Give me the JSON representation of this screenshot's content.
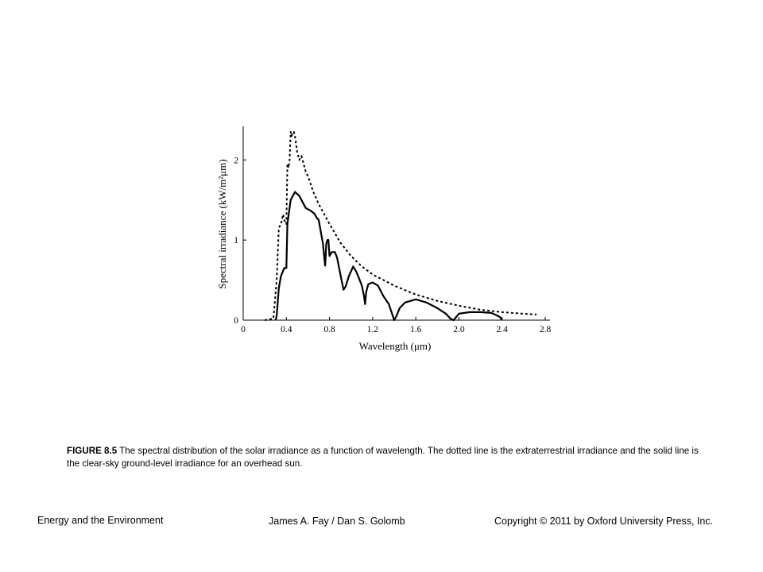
{
  "chart_data": {
    "type": "line",
    "xlabel": "Wavelength (μm)",
    "ylabel": "Spectral irradiance (kW/m²μm)",
    "xlim": [
      0,
      2.8
    ],
    "ylim": [
      0,
      2.35
    ],
    "x_ticks": [
      0,
      0.4,
      0.8,
      1.2,
      1.6,
      2.0,
      2.4,
      2.8
    ],
    "x_tick_labels": [
      "0",
      "0.4",
      "0.8",
      "1.2",
      "1.6",
      "2.0",
      "2.4",
      "2.8"
    ],
    "y_ticks": [
      0,
      1,
      2
    ],
    "y_tick_labels": [
      "0",
      "1",
      "2"
    ],
    "grid": false,
    "series": [
      {
        "style": "dotted",
        "x": [
          0.2,
          0.28,
          0.31,
          0.33,
          0.35,
          0.37,
          0.38,
          0.4,
          0.41,
          0.42,
          0.43,
          0.44,
          0.45,
          0.46,
          0.47,
          0.48,
          0.5,
          0.52,
          0.54,
          0.56,
          0.58,
          0.6,
          0.65,
          0.7,
          0.8,
          0.9,
          1.0,
          1.1,
          1.2,
          1.4,
          1.6,
          1.8,
          2.0,
          2.2,
          2.4,
          2.6,
          2.72
        ],
        "y": [
          0,
          0.02,
          0.5,
          1.15,
          1.2,
          1.32,
          1.25,
          1.2,
          1.95,
          1.9,
          2.0,
          2.35,
          2.3,
          2.35,
          2.35,
          2.3,
          2.1,
          2.0,
          2.05,
          1.95,
          1.85,
          1.8,
          1.6,
          1.45,
          1.2,
          0.97,
          0.8,
          0.67,
          0.57,
          0.43,
          0.32,
          0.24,
          0.18,
          0.13,
          0.1,
          0.08,
          0.07
        ]
      },
      {
        "style": "solid",
        "x": [
          0.3,
          0.31,
          0.33,
          0.35,
          0.38,
          0.4,
          0.41,
          0.44,
          0.48,
          0.52,
          0.56,
          0.58,
          0.62,
          0.66,
          0.68,
          0.7,
          0.72,
          0.74,
          0.75,
          0.76,
          0.77,
          0.78,
          0.79,
          0.8,
          0.82,
          0.85,
          0.87,
          0.9,
          0.93,
          0.95,
          0.98,
          1.02,
          1.05,
          1.08,
          1.1,
          1.12,
          1.13,
          1.14,
          1.16,
          1.2,
          1.25,
          1.3,
          1.35,
          1.4,
          1.42,
          1.45,
          1.5,
          1.6,
          1.7,
          1.8,
          1.88,
          1.92,
          1.95,
          2.0,
          2.1,
          2.2,
          2.3,
          2.35,
          2.38,
          2.4
        ],
        "y": [
          0,
          0.05,
          0.4,
          0.55,
          0.65,
          0.65,
          1.2,
          1.5,
          1.6,
          1.55,
          1.45,
          1.4,
          1.37,
          1.33,
          1.28,
          1.25,
          1.1,
          0.95,
          0.8,
          0.68,
          0.95,
          1.0,
          1.0,
          0.8,
          0.85,
          0.85,
          0.78,
          0.58,
          0.38,
          0.42,
          0.55,
          0.67,
          0.6,
          0.5,
          0.43,
          0.3,
          0.2,
          0.35,
          0.45,
          0.47,
          0.43,
          0.3,
          0.2,
          0.0,
          0.05,
          0.15,
          0.22,
          0.26,
          0.22,
          0.15,
          0.08,
          0.02,
          0.0,
          0.08,
          0.1,
          0.1,
          0.09,
          0.06,
          0.04,
          0.0
        ]
      }
    ]
  },
  "caption": {
    "figure_label": "FIGURE 8.5",
    "text": " The spectral distribution of the solar irradiance as a function of wavelength. The dotted line is the extraterrestrial irradiance and the solid line is the clear-sky ground-level irradiance for an overhead sun."
  },
  "footer": {
    "left": "Energy and the Environment",
    "center": "James A. Fay / Dan S. Golomb",
    "right": "Copyright © 2011 by Oxford University Press, Inc."
  }
}
